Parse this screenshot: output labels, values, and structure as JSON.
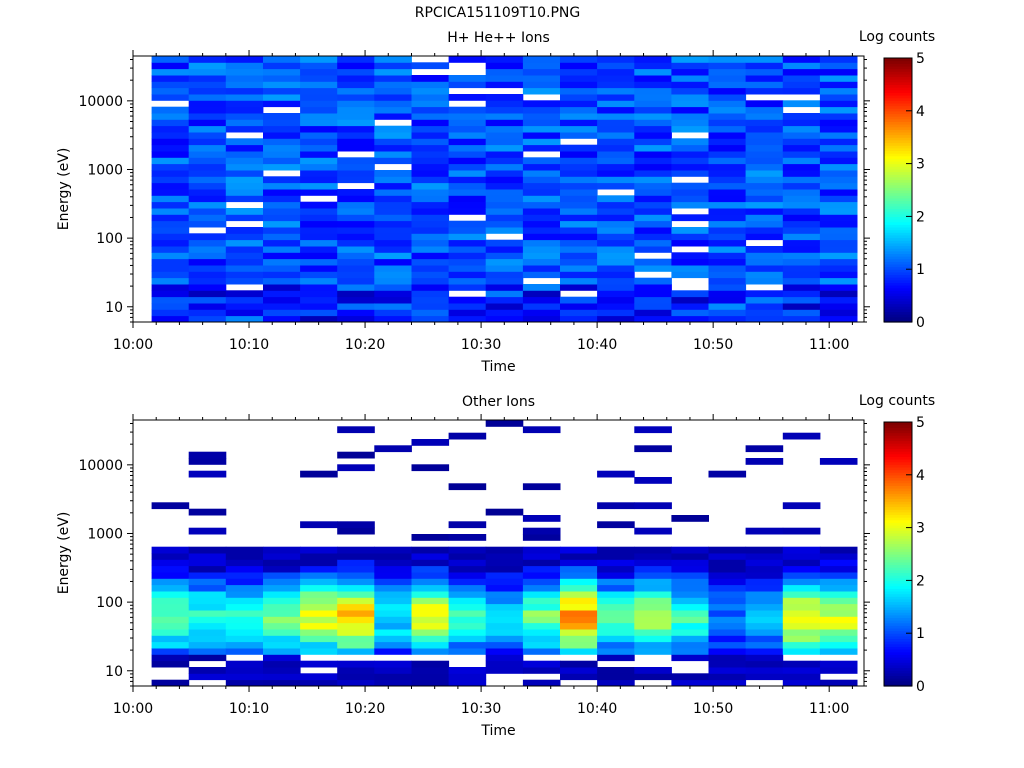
{
  "file_title": "RPCICA151109T10.PNG",
  "colorbar": {
    "label": "Log counts",
    "ticks": [
      "0",
      "1",
      "2",
      "3",
      "4",
      "5"
    ],
    "range": [
      0,
      5
    ],
    "colormap": "jet"
  },
  "chart_data": [
    {
      "type": "heatmap",
      "title": "H+ He++ Ions",
      "xlabel": "Time",
      "ylabel": "Energy (eV)",
      "x_ticks": [
        "10:00",
        "10:10",
        "10:20",
        "10:30",
        "10:40",
        "10:50",
        "11:00"
      ],
      "x_range_minutes": [
        0,
        63
      ],
      "y_ticks": [
        "10",
        "100",
        "1000",
        "10000"
      ],
      "y_scale": "log",
      "y_range": [
        6,
        45000
      ],
      "time_bins_minutes": [
        1.6,
        4.8,
        8.0,
        11.2,
        14.4,
        17.6,
        20.8,
        24.0,
        27.2,
        30.4,
        33.6,
        36.8,
        40.0,
        43.2,
        46.4,
        49.6,
        52.8,
        56.0,
        59.2,
        62.4
      ],
      "energy_bins_ev": "log-spaced, 6 to 45000 eV, 42 bins",
      "dominant_log_counts": 0.8,
      "description_of_values": "uniform blue (log counts ~0.5-1.2) across all energies with sparse white gaps"
    },
    {
      "type": "heatmap",
      "title": "Other Ions",
      "xlabel": "Time",
      "ylabel": "Energy (eV)",
      "x_ticks": [
        "10:00",
        "10:10",
        "10:20",
        "10:30",
        "10:40",
        "10:50",
        "11:00"
      ],
      "x_range_minutes": [
        0,
        63
      ],
      "y_ticks": [
        "10",
        "100",
        "1000",
        "10000"
      ],
      "y_scale": "log",
      "y_range": [
        6,
        45000
      ],
      "peak_log_counts_by_bin": [
        2.4,
        2.1,
        2.2,
        2.4,
        3.0,
        3.3,
        1.8,
        3.1,
        2.0,
        1.6,
        2.4,
        3.6,
        2.2,
        2.6,
        2.1,
        1.2,
        1.4,
        3.2,
        2.9
      ],
      "peak_energy_ev": 60
    }
  ]
}
